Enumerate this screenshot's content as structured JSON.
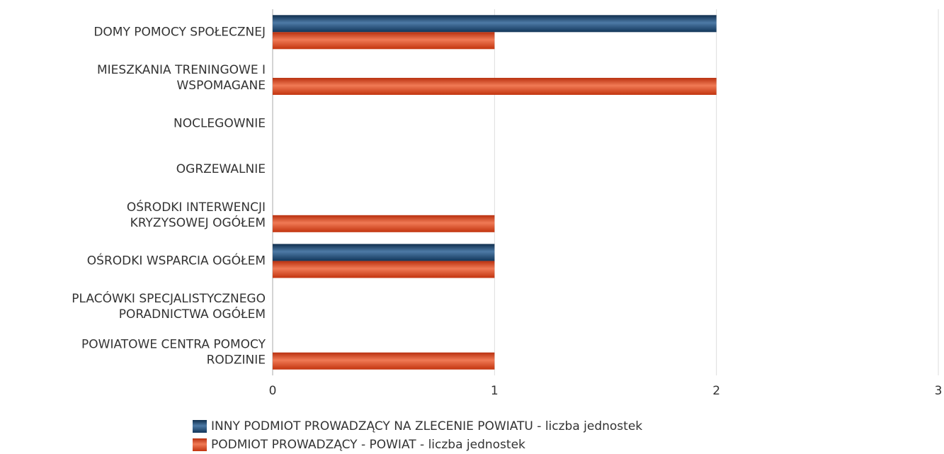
{
  "chart_data": {
    "type": "bar",
    "orientation": "horizontal",
    "categories": [
      "DOMY POMOCY SPOŁECZNEJ",
      "MIESZKANIA TRENINGOWE I\nWSPOMAGANE",
      "NOCLEGOWNIE",
      "OGRZEWALNIE",
      "OŚRODKI INTERWENCJI\nKRYZYSOWEJ OGÓŁEM",
      "OŚRODKI WSPARCIA OGÓŁEM",
      "PLACÓWKI SPECJALISTYCZNEGO\nPORADNICTWA OGÓŁEM",
      "POWIATOWE CENTRA POMOCY\nRODZINIE"
    ],
    "series": [
      {
        "name": "INNY PODMIOT PROWADZĄCY NA ZLECENIE POWIATU - liczba jednostek",
        "color": "#1f4e79",
        "values": [
          2,
          0,
          0,
          0,
          0,
          1,
          0,
          0
        ]
      },
      {
        "name": "PODMIOT PROWADZĄCY - POWIAT - liczba jednostek",
        "color": "#d9441c",
        "values": [
          1,
          2,
          0,
          0,
          1,
          1,
          0,
          1
        ]
      }
    ],
    "xlim": [
      0,
      3
    ],
    "xticks": [
      0,
      1,
      2,
      3
    ],
    "grid": true,
    "legend": "bottom"
  }
}
